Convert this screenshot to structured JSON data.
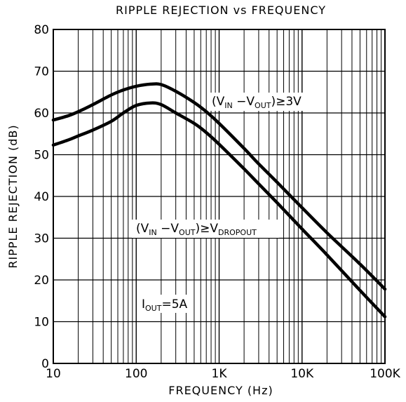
{
  "chart_data": {
    "type": "line",
    "title": "RIPPLE REJECTION vs FREQUENCY",
    "xlabel": "FREQUENCY (Hz)",
    "ylabel": "RIPPLE REJECTION (dB)",
    "x_scale": "log",
    "xlim": [
      10,
      100000
    ],
    "ylim": [
      0,
      80
    ],
    "grid": true,
    "x_tick_labels": [
      "10",
      "100",
      "1K",
      "10K",
      "100K"
    ],
    "y_ticks": [
      0,
      10,
      20,
      30,
      40,
      50,
      60,
      70,
      80
    ],
    "series": [
      {
        "label_parts": {
          "open": "(V",
          "sub1": "IN",
          "mid": "  −V",
          "sub2": "OUT",
          "rel": ")≥",
          "tail": "3V",
          "tail_sub": ""
        },
        "points": [
          [
            10,
            58.3
          ],
          [
            15,
            59.3
          ],
          [
            20,
            60.3
          ],
          [
            30,
            62.0
          ],
          [
            50,
            64.3
          ],
          [
            70,
            65.5
          ],
          [
            100,
            66.4
          ],
          [
            150,
            66.9
          ],
          [
            200,
            66.8
          ],
          [
            300,
            65.2
          ],
          [
            500,
            62.5
          ],
          [
            700,
            60.3
          ],
          [
            1000,
            57.5
          ],
          [
            2000,
            51.5
          ],
          [
            3000,
            47.8
          ],
          [
            5000,
            43.4
          ],
          [
            10000,
            37.3
          ],
          [
            20000,
            31.3
          ],
          [
            50000,
            23.8
          ],
          [
            100000,
            17.8
          ]
        ]
      },
      {
        "label_parts": {
          "open": "(V",
          "sub1": "IN",
          "mid": "  −V",
          "sub2": "OUT",
          "rel": ")≥",
          "tail": "V",
          "tail_sub": "DROPOUT"
        },
        "points": [
          [
            10,
            52.3
          ],
          [
            15,
            53.5
          ],
          [
            20,
            54.5
          ],
          [
            30,
            55.9
          ],
          [
            50,
            58.0
          ],
          [
            70,
            60.0
          ],
          [
            100,
            61.8
          ],
          [
            150,
            62.4
          ],
          [
            200,
            62.0
          ],
          [
            300,
            60.0
          ],
          [
            500,
            57.5
          ],
          [
            700,
            55.3
          ],
          [
            1000,
            52.5
          ],
          [
            2000,
            46.6
          ],
          [
            3000,
            43.0
          ],
          [
            5000,
            38.5
          ],
          [
            10000,
            32.2
          ],
          [
            20000,
            26.0
          ],
          [
            50000,
            17.5
          ],
          [
            100000,
            11.2
          ]
        ]
      }
    ],
    "annotation": {
      "main": "I",
      "sub": "OUT",
      "tail": "=5A"
    }
  }
}
